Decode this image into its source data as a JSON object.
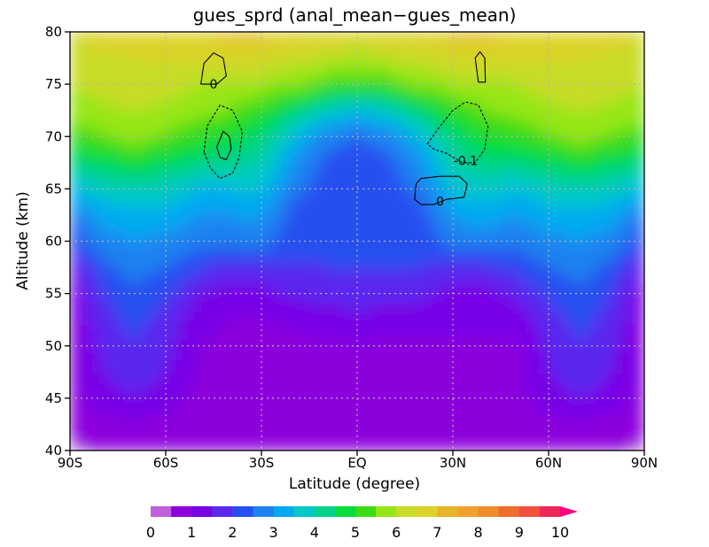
{
  "chart_data": {
    "type": "heatmap",
    "title": "gues_sprd (anal_mean−gues_mean)",
    "xlabel": "Latitude (degree)",
    "ylabel": "Altitude (km)",
    "xlim": [
      -90,
      90
    ],
    "ylim": [
      40,
      80
    ],
    "x_ticks": [
      {
        "value": -90,
        "label": "90S"
      },
      {
        "value": -60,
        "label": "60S"
      },
      {
        "value": -30,
        "label": "30S"
      },
      {
        "value": 0,
        "label": "EQ"
      },
      {
        "value": 30,
        "label": "30N"
      },
      {
        "value": 60,
        "label": "60N"
      },
      {
        "value": 90,
        "label": "90N"
      }
    ],
    "y_ticks": [
      {
        "value": 40,
        "label": "40"
      },
      {
        "value": 45,
        "label": "45"
      },
      {
        "value": 50,
        "label": "50"
      },
      {
        "value": 55,
        "label": "55"
      },
      {
        "value": 60,
        "label": "60"
      },
      {
        "value": 65,
        "label": "65"
      },
      {
        "value": 70,
        "label": "70"
      },
      {
        "value": 75,
        "label": "75"
      },
      {
        "value": 80,
        "label": "80"
      }
    ],
    "grid": true,
    "colorbar": {
      "placement": "bottom",
      "levels": [
        0,
        0.5,
        1,
        1.5,
        2,
        2.5,
        3,
        3.5,
        4,
        4.5,
        5,
        5.5,
        6,
        6.5,
        7,
        7.5,
        8,
        8.5,
        9,
        9.5,
        10
      ],
      "colors": [
        "#c060dc",
        "#8c00dc",
        "#7800e6",
        "#5a28f0",
        "#2850f0",
        "#1e82f0",
        "#00aaf0",
        "#00c8c8",
        "#00d28c",
        "#00dc3c",
        "#3cdc14",
        "#96e614",
        "#c8dc28",
        "#dcd228",
        "#e6b428",
        "#f0a02d",
        "#f08c2d",
        "#f06e2d",
        "#f0503c",
        "#f0285a"
      ],
      "tick_labels": [
        "0",
        "1",
        "2",
        "3",
        "4",
        "5",
        "6",
        "7",
        "8",
        "9",
        "10"
      ],
      "extend": "max"
    },
    "field": {
      "x": [
        -90,
        -80,
        -70,
        -60,
        -50,
        -40,
        -30,
        -20,
        -10,
        0,
        10,
        20,
        30,
        40,
        50,
        60,
        70,
        80,
        90
      ],
      "y": [
        40,
        42.5,
        45,
        47.5,
        50,
        52.5,
        55,
        57.5,
        60,
        62.5,
        65,
        67.5,
        70,
        72.5,
        75,
        77.5,
        80
      ],
      "values": [
        [
          0.4,
          0.6,
          0.6,
          0.6,
          0.6,
          0.6,
          0.6,
          0.6,
          0.7,
          0.9,
          0.9,
          0.9,
          0.8,
          0.6,
          0.6,
          0.6,
          0.6,
          0.6,
          0.4
        ],
        [
          0.6,
          0.9,
          0.9,
          0.9,
          0.8,
          0.8,
          0.8,
          0.8,
          0.8,
          0.8,
          0.9,
          0.9,
          0.9,
          0.8,
          0.8,
          0.9,
          0.9,
          0.9,
          0.6
        ],
        [
          0.8,
          1.2,
          1.5,
          1.2,
          0.9,
          0.9,
          0.9,
          0.9,
          0.9,
          0.9,
          0.9,
          0.9,
          0.9,
          0.9,
          0.9,
          1.2,
          1.5,
          1.2,
          0.8
        ],
        [
          0.9,
          1.5,
          1.8,
          1.5,
          1.0,
          0.9,
          0.9,
          0.9,
          0.9,
          0.9,
          0.9,
          0.9,
          0.5,
          0.5,
          0.9,
          1.5,
          1.9,
          1.5,
          0.9
        ],
        [
          0.9,
          1.6,
          2.0,
          1.6,
          1.0,
          0.9,
          0.9,
          0.9,
          0.9,
          1.0,
          0.9,
          0.9,
          0.9,
          0.9,
          0.9,
          1.6,
          2.0,
          1.6,
          0.9
        ],
        [
          0.9,
          1.8,
          2.1,
          1.8,
          1.2,
          1.0,
          1.0,
          1.1,
          1.2,
          1.3,
          1.2,
          1.2,
          1.2,
          1.2,
          1.2,
          1.8,
          2.1,
          1.8,
          0.9
        ],
        [
          1.0,
          2.0,
          2.4,
          2.1,
          1.5,
          1.2,
          1.3,
          1.6,
          1.7,
          1.8,
          1.7,
          1.6,
          1.3,
          1.3,
          1.6,
          2.1,
          2.4,
          2.0,
          1.0
        ],
        [
          1.5,
          2.3,
          2.7,
          2.5,
          2.1,
          1.8,
          1.8,
          1.9,
          2.0,
          2.0,
          2.0,
          2.0,
          1.8,
          1.9,
          2.1,
          2.5,
          2.7,
          2.3,
          1.5
        ],
        [
          2.1,
          2.8,
          3.0,
          2.9,
          2.6,
          2.6,
          2.7,
          2.2,
          2.1,
          2.1,
          2.1,
          2.2,
          2.7,
          2.8,
          2.6,
          2.9,
          3.0,
          2.8,
          2.1
        ],
        [
          2.6,
          3.2,
          3.3,
          3.3,
          3.0,
          3.0,
          3.1,
          2.3,
          2.2,
          2.1,
          2.2,
          2.3,
          3.1,
          3.2,
          3.0,
          3.3,
          3.3,
          3.2,
          2.6
        ],
        [
          3.4,
          3.8,
          4.0,
          3.8,
          3.5,
          3.5,
          3.6,
          2.6,
          2.3,
          2.2,
          2.3,
          2.6,
          3.6,
          3.8,
          3.5,
          3.8,
          4.0,
          3.8,
          3.4
        ],
        [
          4.3,
          4.6,
          4.8,
          4.6,
          4.3,
          4.2,
          4.0,
          3.0,
          2.4,
          2.3,
          2.4,
          3.0,
          4.0,
          4.3,
          4.3,
          4.6,
          4.8,
          4.6,
          4.3
        ],
        [
          5.2,
          5.4,
          5.8,
          5.4,
          5.1,
          4.8,
          4.4,
          3.5,
          2.7,
          2.5,
          2.7,
          3.5,
          4.4,
          4.9,
          5.1,
          5.4,
          5.8,
          5.4,
          5.2
        ],
        [
          5.8,
          5.9,
          6.0,
          5.9,
          5.7,
          5.5,
          5.1,
          4.5,
          3.8,
          3.5,
          3.8,
          4.5,
          5.1,
          5.5,
          5.7,
          5.9,
          6.0,
          5.9,
          5.8
        ],
        [
          6.0,
          6.2,
          6.3,
          6.2,
          6.0,
          6.0,
          5.8,
          5.6,
          5.3,
          5.0,
          5.3,
          5.6,
          5.8,
          6.0,
          6.0,
          6.2,
          6.3,
          6.2,
          6.0
        ],
        [
          6.2,
          6.4,
          6.5,
          6.5,
          6.6,
          6.6,
          6.5,
          6.3,
          6.1,
          5.9,
          6.1,
          6.3,
          6.5,
          6.6,
          6.6,
          6.5,
          6.5,
          6.4,
          6.2
        ],
        [
          6.6,
          6.8,
          6.9,
          6.9,
          7.0,
          7.1,
          7.1,
          7.0,
          6.9,
          6.8,
          6.9,
          7.0,
          7.1,
          7.1,
          7.0,
          6.9,
          6.9,
          6.8,
          6.6
        ]
      ]
    },
    "contours": [
      {
        "label": "0",
        "style": "solid",
        "label_at": [
          -45,
          75
        ],
        "points": [
          [
            -49,
            75
          ],
          [
            -48,
            77
          ],
          [
            -45,
            78
          ],
          [
            -42,
            77.5
          ],
          [
            -41,
            75.8
          ],
          [
            -44,
            75
          ],
          [
            -49,
            75
          ]
        ]
      },
      {
        "label": "",
        "style": "solid",
        "points": [
          [
            38,
            75.2
          ],
          [
            37,
            77.5
          ],
          [
            38.5,
            78.1
          ],
          [
            40,
            77.5
          ],
          [
            40.2,
            75.2
          ],
          [
            38,
            75.2
          ]
        ]
      },
      {
        "label": "",
        "style": "dashed",
        "points": [
          [
            -48,
            68.5
          ],
          [
            -47,
            71
          ],
          [
            -43,
            73
          ],
          [
            -39,
            72.5
          ],
          [
            -36,
            70.5
          ],
          [
            -37,
            68
          ],
          [
            -39,
            66.5
          ],
          [
            -43,
            66
          ],
          [
            -46,
            67
          ],
          [
            -48,
            68.5
          ]
        ]
      },
      {
        "label": "",
        "style": "solid",
        "points": [
          [
            -44,
            69
          ],
          [
            -42,
            70.5
          ],
          [
            -40,
            70
          ],
          [
            -39.5,
            68.8
          ],
          [
            -41,
            67.8
          ],
          [
            -43,
            68
          ],
          [
            -44,
            69
          ]
        ]
      },
      {
        "label": "-0.1",
        "style": "dashed",
        "label_at": [
          34,
          67.7
        ],
        "points": [
          [
            22,
            69.3
          ],
          [
            26,
            71
          ],
          [
            30,
            72.5
          ],
          [
            34,
            73.3
          ],
          [
            38,
            73
          ],
          [
            41,
            71
          ],
          [
            40,
            68.8
          ],
          [
            37,
            67.5
          ],
          [
            33,
            67.5
          ],
          [
            28,
            68.4
          ],
          [
            24,
            68.8
          ],
          [
            22,
            69.3
          ]
        ]
      },
      {
        "label": "0",
        "style": "solid",
        "label_at": [
          26,
          63.8
        ],
        "points": [
          [
            18.5,
            65.5
          ],
          [
            18,
            64
          ],
          [
            20,
            63.5
          ],
          [
            24,
            63.5
          ],
          [
            28,
            64
          ],
          [
            33.5,
            64.2
          ],
          [
            34.5,
            65.5
          ],
          [
            32,
            66.2
          ],
          [
            26,
            66.2
          ],
          [
            20,
            66
          ],
          [
            18.5,
            65.5
          ]
        ]
      }
    ]
  }
}
